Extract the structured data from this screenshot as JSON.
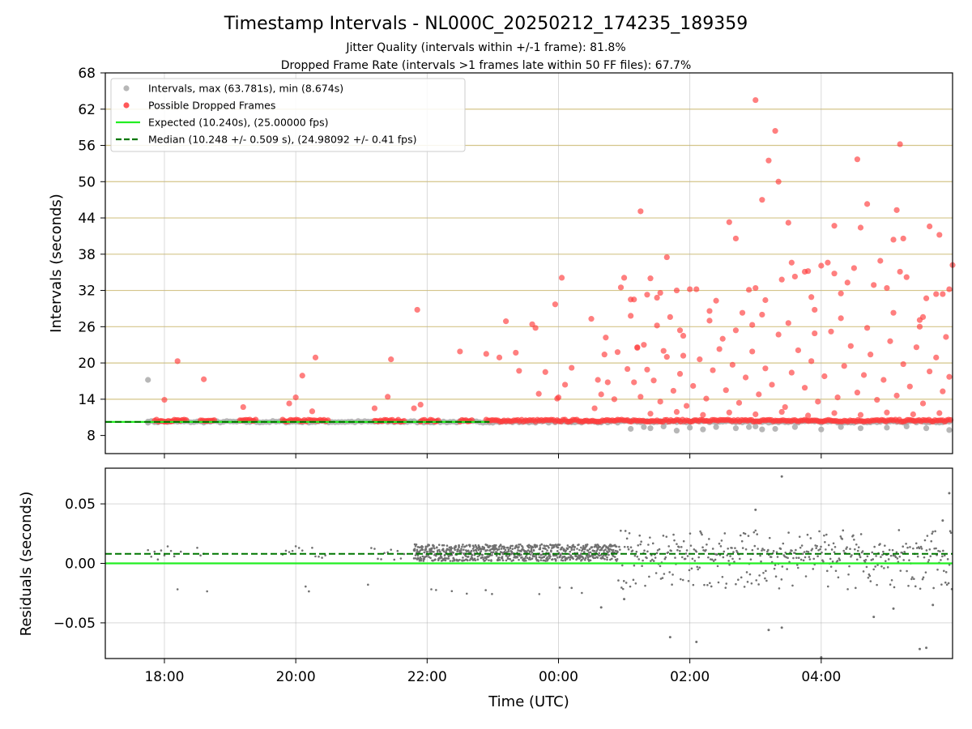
{
  "header": {
    "title": "Timestamp Intervals - NL000C_20250212_174235_189359",
    "subtitle1": "Jitter Quality (intervals within +/-1 frame): 81.8%",
    "subtitle2": "Dropped Frame Rate (intervals >1 frames late within 50 FF files): 67.7%"
  },
  "colors": {
    "intervals": "#aaaaaa",
    "dropped": "#ff3b3b",
    "expected": "#22ee22",
    "median": "#007700",
    "gridlines": "#d4c58a",
    "residual_points": "#707070"
  },
  "chart_data": [
    {
      "type": "scatter",
      "panel": "top",
      "xlabel": "",
      "ylabel": "Intervals (seconds)",
      "x_unit": "hours_utc",
      "xlim": [
        17.1,
        30.0
      ],
      "ylim": [
        5,
        68
      ],
      "yticks": [
        8,
        14,
        20,
        26,
        32,
        38,
        44,
        50,
        56,
        62,
        68
      ],
      "ytick_labels": [
        "8",
        "14",
        "20",
        "26",
        "32",
        "38",
        "44",
        "50",
        "56",
        "62",
        "68"
      ],
      "xticks": [
        18,
        20,
        22,
        24,
        26,
        28
      ],
      "grid": true,
      "legend_position": "top-left",
      "legend": [
        {
          "label": "Intervals, max (63.781s), min (8.674s)",
          "kind": "marker",
          "color": "#aaaaaa"
        },
        {
          "label": "Possible Dropped Frames",
          "kind": "marker",
          "color": "#ff3b3b"
        },
        {
          "label": "Expected (10.240s), (25.00000 fps)",
          "kind": "line",
          "color": "#22ee22"
        },
        {
          "label": "Median (10.248 +/- 0.509 s), (24.98092 +/- 0.41 fps)",
          "kind": "dashed",
          "color": "#007700"
        }
      ],
      "expected_y": 10.24,
      "median_y": 10.248,
      "baseline_segments": [
        [
          17.75,
          24.9
        ],
        [
          24.9,
          30.0
        ]
      ],
      "dropped_baseline_segments": [
        [
          17.85,
          18.35
        ],
        [
          18.55,
          18.78
        ],
        [
          19.15,
          19.42
        ],
        [
          19.8,
          20.5
        ],
        [
          21.2,
          21.68
        ],
        [
          21.9,
          22.2
        ],
        [
          22.5,
          22.7
        ],
        [
          22.9,
          24.9
        ],
        [
          24.9,
          30.0
        ]
      ],
      "interval_points": [
        [
          17.75,
          17.2
        ],
        [
          17.75,
          10.3
        ],
        [
          25.1,
          9.1
        ],
        [
          25.3,
          9.4
        ],
        [
          25.4,
          9.2
        ],
        [
          25.6,
          9.5
        ],
        [
          25.8,
          8.8
        ],
        [
          26.0,
          9.3
        ],
        [
          26.2,
          9.0
        ],
        [
          26.4,
          9.4
        ],
        [
          26.7,
          9.2
        ],
        [
          27.0,
          9.5
        ],
        [
          27.3,
          9.1
        ],
        [
          27.6,
          9.4
        ],
        [
          28.0,
          9.0
        ],
        [
          28.3,
          9.4
        ],
        [
          28.6,
          9.2
        ],
        [
          29.0,
          9.3
        ],
        [
          29.3,
          9.5
        ],
        [
          29.6,
          9.2
        ],
        [
          29.95,
          8.9
        ],
        [
          26.9,
          9.4
        ],
        [
          27.1,
          9.0
        ],
        [
          24.2,
          10.3
        ],
        [
          23.5,
          10.3
        ]
      ],
      "dropped_points": [
        [
          18.0,
          13.9
        ],
        [
          18.2,
          20.3
        ],
        [
          18.6,
          17.3
        ],
        [
          19.2,
          12.7
        ],
        [
          19.9,
          13.3
        ],
        [
          20.0,
          14.3
        ],
        [
          20.1,
          17.9
        ],
        [
          20.25,
          12.0
        ],
        [
          20.3,
          20.9
        ],
        [
          21.2,
          12.5
        ],
        [
          21.4,
          14.4
        ],
        [
          21.45,
          20.6
        ],
        [
          21.8,
          12.5
        ],
        [
          21.85,
          28.8
        ],
        [
          21.9,
          13.1
        ],
        [
          22.5,
          21.9
        ],
        [
          22.9,
          21.5
        ],
        [
          23.1,
          20.9
        ],
        [
          23.2,
          26.9
        ],
        [
          23.35,
          21.7
        ],
        [
          23.4,
          18.7
        ],
        [
          23.6,
          26.4
        ],
        [
          23.65,
          25.8
        ],
        [
          23.7,
          14.9
        ],
        [
          23.8,
          18.5
        ],
        [
          23.95,
          29.7
        ],
        [
          24.0,
          14.3
        ],
        [
          23.98,
          14.1
        ],
        [
          24.1,
          16.4
        ],
        [
          24.2,
          19.2
        ],
        [
          24.05,
          34.1
        ],
        [
          24.5,
          27.3
        ],
        [
          24.6,
          17.2
        ],
        [
          24.7,
          21.4
        ],
        [
          24.72,
          24.2
        ],
        [
          24.9,
          21.8
        ],
        [
          24.95,
          32.5
        ],
        [
          25.0,
          34.1
        ],
        [
          25.1,
          30.5
        ],
        [
          25.15,
          30.5
        ],
        [
          25.2,
          22.6
        ],
        [
          25.25,
          45.1
        ],
        [
          25.35,
          31.3
        ],
        [
          25.4,
          34.0
        ],
        [
          25.5,
          30.8
        ],
        [
          25.55,
          31.6
        ],
        [
          25.65,
          37.5
        ],
        [
          25.7,
          27.6
        ],
        [
          25.8,
          32.0
        ],
        [
          25.85,
          25.4
        ],
        [
          26.0,
          32.2
        ],
        [
          26.1,
          32.2
        ],
        [
          26.3,
          28.6
        ],
        [
          26.4,
          30.3
        ],
        [
          26.6,
          43.3
        ],
        [
          26.7,
          40.6
        ],
        [
          26.8,
          28.3
        ],
        [
          26.9,
          32.1
        ],
        [
          26.95,
          26.3
        ],
        [
          27.0,
          32.4
        ],
        [
          27.0,
          63.5
        ],
        [
          27.1,
          47.0
        ],
        [
          27.15,
          30.4
        ],
        [
          27.2,
          53.5
        ],
        [
          27.3,
          58.4
        ],
        [
          27.35,
          50.0
        ],
        [
          27.4,
          33.8
        ],
        [
          27.5,
          43.2
        ],
        [
          27.55,
          36.6
        ],
        [
          27.75,
          35.1
        ],
        [
          27.8,
          35.2
        ],
        [
          27.85,
          30.9
        ],
        [
          27.9,
          28.8
        ],
        [
          28.0,
          36.1
        ],
        [
          28.1,
          36.6
        ],
        [
          28.2,
          42.7
        ],
        [
          28.3,
          31.5
        ],
        [
          28.4,
          33.3
        ],
        [
          28.5,
          35.7
        ],
        [
          28.55,
          53.7
        ],
        [
          28.6,
          42.4
        ],
        [
          28.7,
          46.3
        ],
        [
          28.8,
          32.9
        ],
        [
          28.9,
          36.9
        ],
        [
          29.0,
          32.4
        ],
        [
          29.1,
          40.4
        ],
        [
          29.15,
          45.3
        ],
        [
          29.2,
          35.1
        ],
        [
          29.25,
          40.6
        ],
        [
          29.3,
          34.2
        ],
        [
          29.2,
          56.2
        ],
        [
          29.5,
          27.1
        ],
        [
          29.55,
          27.6
        ],
        [
          29.6,
          30.7
        ],
        [
          29.65,
          42.6
        ],
        [
          29.75,
          31.4
        ],
        [
          29.8,
          41.2
        ],
        [
          29.85,
          31.4
        ],
        [
          29.95,
          32.2
        ],
        [
          30.0,
          36.2
        ],
        [
          28.2,
          34.8
        ],
        [
          27.6,
          34.3
        ],
        [
          26.5,
          24.0
        ],
        [
          25.9,
          21.2
        ],
        [
          25.6,
          22.0
        ],
        [
          25.3,
          23.0
        ],
        [
          25.2,
          22.5
        ],
        [
          24.85,
          14.0
        ],
        [
          24.75,
          16.8
        ],
        [
          24.55,
          12.5
        ],
        [
          24.65,
          14.8
        ],
        [
          25.05,
          19.0
        ],
        [
          25.15,
          16.8
        ],
        [
          25.25,
          14.4
        ],
        [
          25.35,
          18.9
        ],
        [
          25.45,
          17.1
        ],
        [
          25.55,
          13.6
        ],
        [
          25.65,
          21.0
        ],
        [
          25.75,
          15.4
        ],
        [
          25.85,
          18.2
        ],
        [
          25.95,
          12.9
        ],
        [
          26.05,
          16.2
        ],
        [
          26.15,
          20.6
        ],
        [
          26.25,
          14.1
        ],
        [
          26.35,
          18.8
        ],
        [
          26.45,
          22.3
        ],
        [
          26.55,
          15.5
        ],
        [
          26.65,
          19.7
        ],
        [
          26.75,
          13.4
        ],
        [
          26.85,
          17.6
        ],
        [
          26.95,
          21.9
        ],
        [
          27.05,
          14.8
        ],
        [
          27.15,
          19.1
        ],
        [
          27.25,
          16.4
        ],
        [
          27.35,
          24.7
        ],
        [
          27.45,
          12.7
        ],
        [
          27.55,
          18.4
        ],
        [
          27.65,
          22.1
        ],
        [
          27.75,
          15.9
        ],
        [
          27.85,
          20.3
        ],
        [
          27.95,
          13.6
        ],
        [
          28.05,
          17.8
        ],
        [
          28.15,
          25.2
        ],
        [
          28.25,
          14.3
        ],
        [
          28.35,
          19.5
        ],
        [
          28.45,
          22.8
        ],
        [
          28.55,
          15.1
        ],
        [
          28.65,
          18.0
        ],
        [
          28.75,
          21.4
        ],
        [
          28.85,
          13.9
        ],
        [
          28.95,
          17.2
        ],
        [
          29.05,
          23.6
        ],
        [
          29.15,
          14.6
        ],
        [
          29.25,
          19.8
        ],
        [
          29.35,
          16.1
        ],
        [
          29.45,
          22.6
        ],
        [
          29.55,
          13.3
        ],
        [
          29.65,
          18.6
        ],
        [
          29.75,
          20.9
        ],
        [
          29.85,
          15.3
        ],
        [
          29.95,
          17.7
        ],
        [
          25.1,
          27.8
        ],
        [
          25.5,
          26.2
        ],
        [
          25.9,
          24.5
        ],
        [
          26.3,
          27.0
        ],
        [
          26.7,
          25.4
        ],
        [
          27.1,
          28.0
        ],
        [
          27.5,
          26.6
        ],
        [
          27.9,
          24.9
        ],
        [
          28.3,
          27.4
        ],
        [
          28.7,
          25.8
        ],
        [
          29.1,
          28.3
        ],
        [
          29.5,
          26.0
        ],
        [
          29.9,
          24.3
        ],
        [
          25.4,
          11.6
        ],
        [
          25.8,
          11.9
        ],
        [
          26.2,
          11.4
        ],
        [
          26.6,
          11.8
        ],
        [
          27.0,
          11.5
        ],
        [
          27.4,
          11.9
        ],
        [
          27.8,
          11.3
        ],
        [
          28.2,
          11.7
        ],
        [
          28.6,
          11.4
        ],
        [
          29.0,
          11.8
        ],
        [
          29.4,
          11.5
        ],
        [
          29.8,
          11.7
        ]
      ]
    },
    {
      "type": "scatter",
      "panel": "bottom",
      "xlabel": "Time (UTC)",
      "ylabel": "Residuals (seconds)",
      "x_unit": "hours_utc",
      "xlim": [
        17.1,
        30.0
      ],
      "ylim": [
        -0.08,
        0.08
      ],
      "yticks": [
        -0.05,
        0.0,
        0.05
      ],
      "ytick_labels": [
        "−0.05",
        "0.00",
        "0.05"
      ],
      "xticks": [
        18,
        20,
        22,
        24,
        26,
        28
      ],
      "xtick_labels": [
        "18:00",
        "20:00",
        "22:00",
        "00:00",
        "02:00",
        "04:00"
      ],
      "grid": true,
      "expected_y": 0.0,
      "median_y": 0.008,
      "dense_band": {
        "x_range": [
          21.8,
          24.9
        ],
        "y_range": [
          0.002,
          0.016
        ]
      },
      "outliers": [
        [
          26.1,
          -0.066
        ],
        [
          25.7,
          -0.062
        ],
        [
          27.2,
          -0.056
        ],
        [
          27.4,
          -0.054
        ],
        [
          27.4,
          0.073
        ],
        [
          27.0,
          0.045
        ],
        [
          28.0,
          -0.079
        ],
        [
          29.5,
          -0.072
        ],
        [
          29.6,
          -0.071
        ],
        [
          29.95,
          0.059
        ],
        [
          29.85,
          0.036
        ],
        [
          24.65,
          -0.037
        ],
        [
          25.0,
          -0.03
        ],
        [
          28.8,
          -0.045
        ],
        [
          29.1,
          -0.038
        ],
        [
          29.7,
          -0.035
        ]
      ]
    }
  ]
}
